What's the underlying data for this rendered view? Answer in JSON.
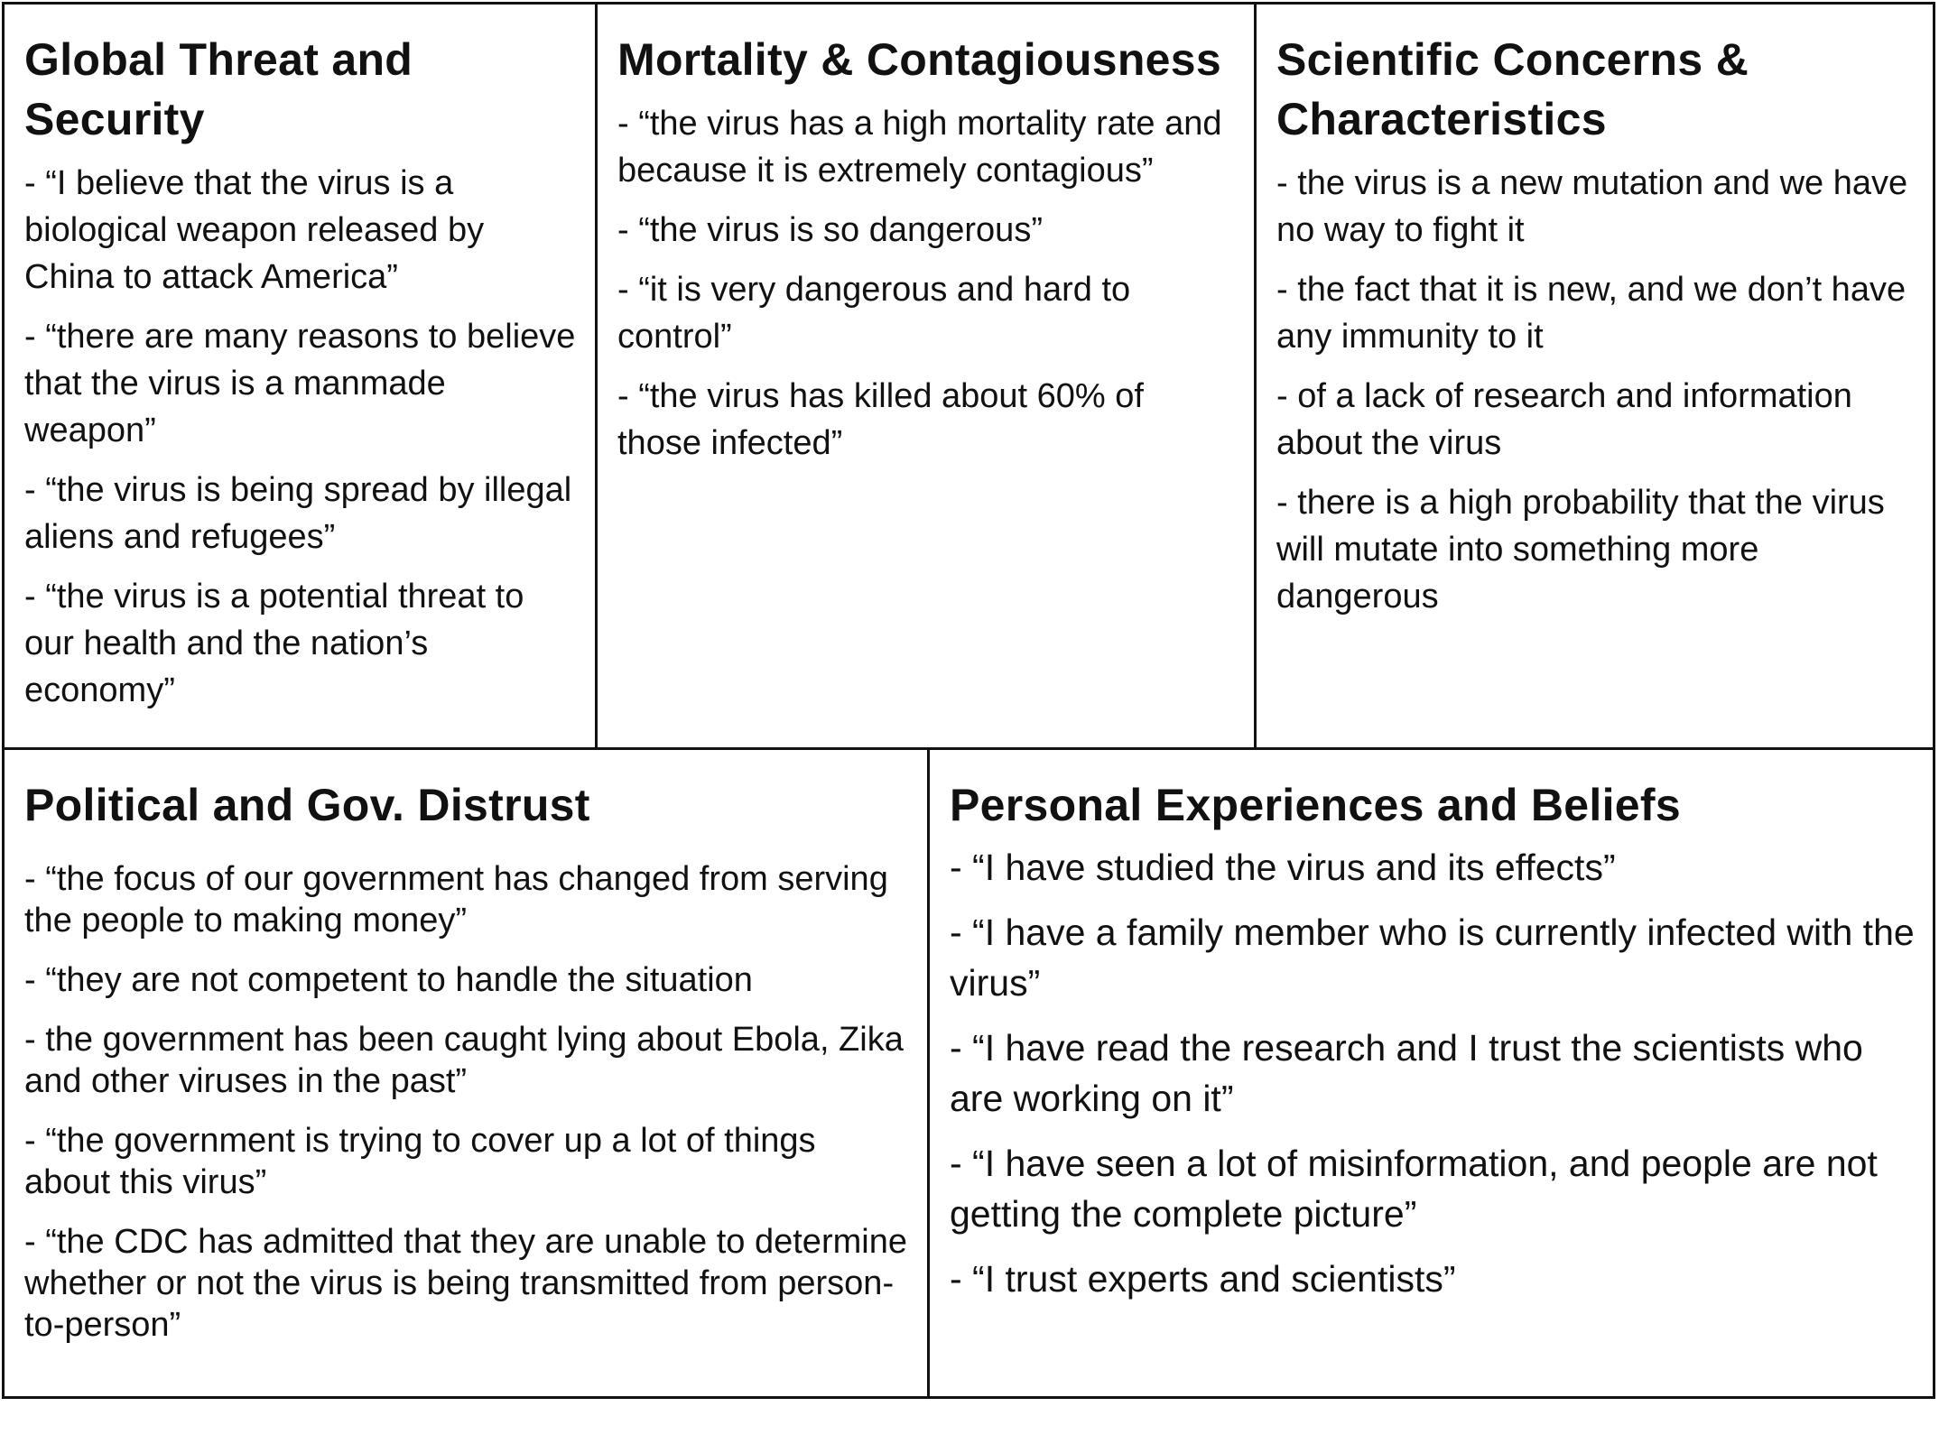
{
  "panels": [
    {
      "title": "Global Threat and Security",
      "items": [
        "- “I believe that the virus is a biological weapon released by China to attack America”",
        "- “there are many reasons to believe that the virus is a manmade weapon”",
        "- “the virus is being spread by illegal aliens and refugees”",
        "- “the virus is a potential threat to our health and the nation’s economy”"
      ]
    },
    {
      "title": "Mortality & Contagiousness",
      "items": [
        "- “the virus has a high mortality rate and because it is extremely contagious”",
        "- “the virus is so dangerous”",
        "- “it is very dangerous and hard to control”",
        "- “the virus has killed about 60% of those infected”"
      ]
    },
    {
      "title": "Scientific Concerns & Characteristics",
      "items": [
        "- the virus is a new mutation and we have no way to fight it",
        "- the fact that it is new, and we don’t have any immunity to it",
        "- of a lack of research and information about the virus",
        "-  there is a high probability that the virus will mutate into something more dangerous"
      ]
    },
    {
      "title": "Political and Gov. Distrust",
      "items": [
        "- “the focus of our government has changed from serving the people to making money”",
        "- “they are not competent to handle the situation",
        "- the government has been caught lying about Ebola, Zika and other viruses in the past”",
        "- “the government is trying to cover up a lot of things about this virus”",
        "- “the CDC has admitted that they are unable to determine whether or not the virus is being transmitted from person-to-person”"
      ]
    },
    {
      "title": "Personal Experiences and Beliefs",
      "items": [
        "- “I have studied the virus and its effects”",
        "- “I have a family member who is currently infected with the virus”",
        "- “I have read the research and I trust the scientists who are working on it”",
        "- “I have seen a lot of misinformation, and people are not getting the complete picture”",
        "- “I trust experts and scientists”"
      ]
    }
  ]
}
